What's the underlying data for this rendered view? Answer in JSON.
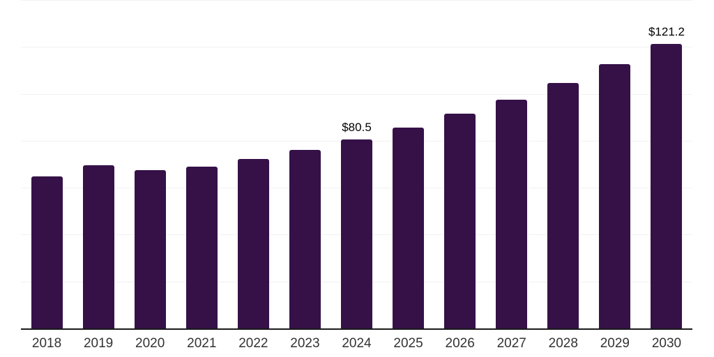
{
  "chart_data": {
    "type": "bar",
    "title": "",
    "xlabel": "",
    "ylabel": "",
    "categories": [
      "2018",
      "2019",
      "2020",
      "2021",
      "2022",
      "2023",
      "2024",
      "2025",
      "2026",
      "2027",
      "2028",
      "2029",
      "2030"
    ],
    "values": [
      64.8,
      69.5,
      67.4,
      68.9,
      72.2,
      76.1,
      80.5,
      85.6,
      91.5,
      97.4,
      104.6,
      112.6,
      121.2
    ],
    "value_labels": [
      "",
      "",
      "",
      "",
      "",
      "",
      "$80.5",
      "",
      "",
      "",
      "",
      "",
      "$121.2"
    ],
    "unit_prefix": "$",
    "ylim": [
      0,
      140
    ],
    "gridline_values": [
      0,
      20,
      40,
      60,
      80,
      100,
      120,
      140
    ],
    "grid": "horizontal",
    "legend": "none",
    "bar_color": "#351148"
  },
  "colors": {
    "bar": "#351148",
    "gridline": "#f2f2f2",
    "axis": "#1a1a1a",
    "tick_label": "#333333",
    "value_label": "#000000",
    "background": "#ffffff"
  }
}
